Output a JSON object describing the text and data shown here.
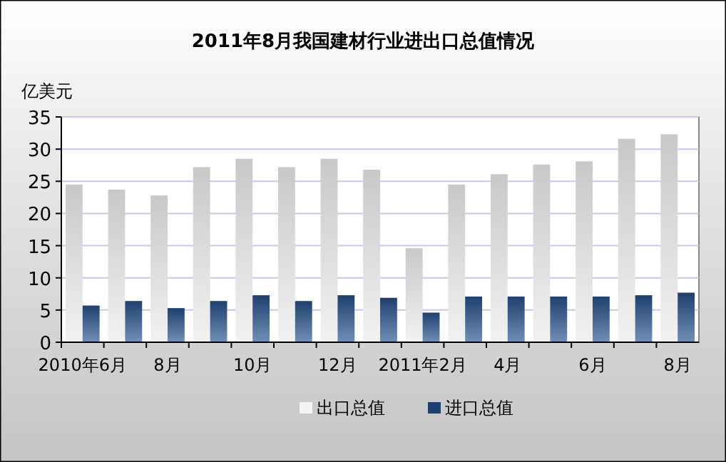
{
  "chart_data": {
    "type": "bar",
    "title": "2011年8月我国建材行业进出口总值情况",
    "ylabel": "亿美元",
    "categories": [
      "2010年6月",
      null,
      "8月",
      null,
      "10月",
      null,
      "12月",
      null,
      "2011年2月",
      null,
      "4月",
      null,
      "6月",
      null,
      "8月"
    ],
    "series": [
      {
        "name": "出口总值",
        "color": "#c8c8c8",
        "values": [
          24.5,
          23.7,
          22.8,
          27.2,
          28.5,
          27.2,
          28.5,
          26.8,
          14.6,
          24.5,
          26.1,
          27.6,
          28.1,
          31.6,
          32.3
        ]
      },
      {
        "name": "进口总值",
        "color": "#1f3f6e",
        "values": [
          5.7,
          6.4,
          5.3,
          6.4,
          7.3,
          6.4,
          7.3,
          6.9,
          4.6,
          7.1,
          7.1,
          7.1,
          7.1,
          7.3,
          7.7
        ]
      }
    ],
    "ylim": [
      0,
      35
    ],
    "yticks": [
      0,
      5,
      10,
      15,
      20,
      25,
      30,
      35
    ],
    "grid": "y",
    "legend": "bottom"
  }
}
